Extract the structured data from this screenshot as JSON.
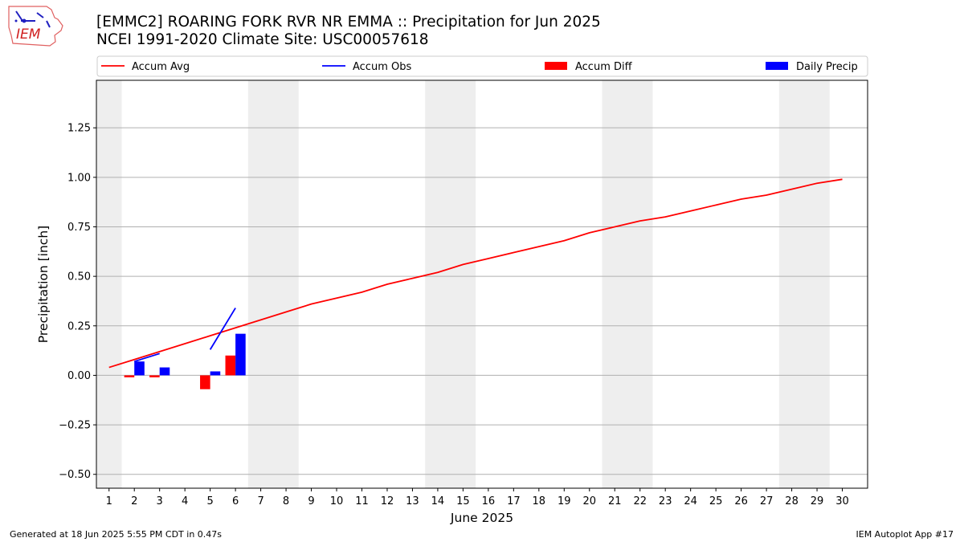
{
  "header": {
    "title_line1": "[EMMC2] ROARING FORK RVR NR EMMA :: Precipitation for Jun 2025",
    "title_line2": "NCEI 1991-2020 Climate Site: USC00057618"
  },
  "logo": {
    "text": "IEM",
    "icon": "iem-iowa-logo"
  },
  "footer": {
    "left": "Generated at 18 Jun 2025 5:55 PM CDT in 0.47s",
    "right": "IEM Autoplot App #17"
  },
  "colors": {
    "avg": "#ff0000",
    "obs": "#0000ff",
    "diff": "#ff0000",
    "daily": "#0000ff",
    "weekend": "#eeeeee"
  },
  "chart_data": {
    "type": "bar",
    "xlabel": "June 2025",
    "ylabel": "Precipitation [inch]",
    "xlim": [
      0.5,
      31.0
    ],
    "ylim": [
      -0.57,
      1.49
    ],
    "yticks": [
      -0.5,
      -0.25,
      0.0,
      0.25,
      0.5,
      0.75,
      1.0,
      1.25
    ],
    "ytick_labels": [
      "−0.50",
      "−0.25",
      "0.00",
      "0.25",
      "0.50",
      "0.75",
      "1.00",
      "1.25"
    ],
    "xticks": [
      1,
      2,
      3,
      4,
      5,
      6,
      7,
      8,
      9,
      10,
      11,
      12,
      13,
      14,
      15,
      16,
      17,
      18,
      19,
      20,
      21,
      22,
      23,
      24,
      25,
      26,
      27,
      28,
      29,
      30
    ],
    "grid": "horizontal",
    "legend_position": "top",
    "shaded_days": [
      [
        1,
        1
      ],
      [
        7,
        8
      ],
      [
        14,
        15
      ],
      [
        21,
        22
      ],
      [
        28,
        29
      ]
    ],
    "series": [
      {
        "name": "Accum Avg",
        "kind": "line",
        "x": [
          1,
          2,
          3,
          4,
          5,
          6,
          7,
          8,
          9,
          10,
          11,
          12,
          13,
          14,
          15,
          16,
          17,
          18,
          19,
          20,
          21,
          22,
          23,
          24,
          25,
          26,
          27,
          28,
          29,
          30
        ],
        "values": [
          0.04,
          0.08,
          0.12,
          0.16,
          0.2,
          0.24,
          0.28,
          0.32,
          0.36,
          0.39,
          0.42,
          0.46,
          0.49,
          0.52,
          0.56,
          0.59,
          0.62,
          0.65,
          0.68,
          0.72,
          0.75,
          0.78,
          0.8,
          0.83,
          0.86,
          0.89,
          0.91,
          0.94,
          0.97,
          0.99
        ]
      },
      {
        "name": "Accum Obs",
        "kind": "line",
        "segments": [
          {
            "x": [
              2,
              3
            ],
            "values": [
              0.07,
              0.11
            ]
          },
          {
            "x": [
              5,
              6
            ],
            "values": [
              0.13,
              0.34
            ]
          }
        ]
      },
      {
        "name": "Accum Diff",
        "kind": "bar",
        "x": [
          2,
          3,
          5,
          6
        ],
        "values": [
          -0.01,
          -0.01,
          -0.07,
          0.1
        ]
      },
      {
        "name": "Daily Precip",
        "kind": "bar",
        "x": [
          2,
          3,
          5,
          6
        ],
        "values": [
          0.07,
          0.04,
          0.02,
          0.21
        ]
      }
    ]
  }
}
